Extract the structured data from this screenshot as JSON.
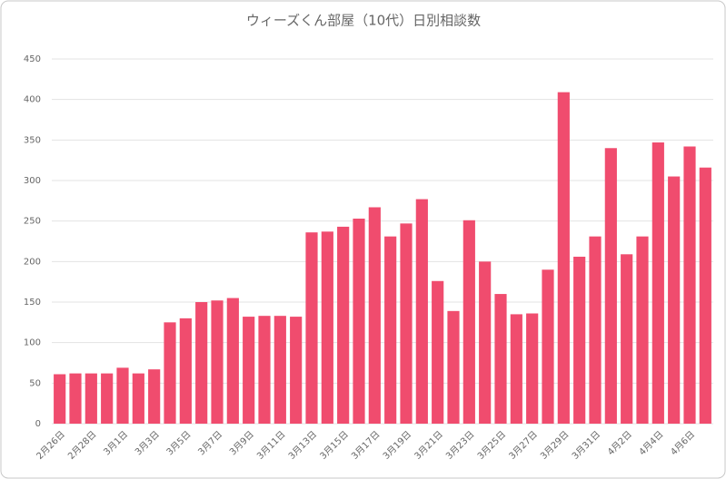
{
  "chart_data": {
    "type": "bar",
    "title": "ウィーズくん部屋（10代）日別相談数",
    "categories": [
      "2月26日",
      null,
      "2月28日",
      null,
      "3月1日",
      null,
      "3月3日",
      null,
      "3月5日",
      null,
      "3月7日",
      null,
      "3月9日",
      null,
      "3月11日",
      null,
      "3月13日",
      null,
      "3月15日",
      null,
      "3月17日",
      null,
      "3月19日",
      null,
      "3月21日",
      null,
      "3月23日",
      null,
      "3月25日",
      null,
      "3月27日",
      null,
      "3月29日",
      null,
      "3月31日",
      null,
      "4月2日",
      null,
      "4月4日",
      null,
      "4月6日",
      null
    ],
    "values": [
      61,
      62,
      62,
      62,
      69,
      62,
      67,
      125,
      130,
      150,
      152,
      155,
      132,
      133,
      133,
      132,
      236,
      237,
      243,
      253,
      267,
      231,
      247,
      277,
      176,
      139,
      251,
      200,
      160,
      135,
      136,
      190,
      409,
      206,
      231,
      340,
      209,
      231,
      347,
      305,
      342,
      316
    ],
    "color": "#f04c6e",
    "ylim": [
      0,
      450
    ],
    "yticks": [
      0,
      50,
      100,
      150,
      200,
      250,
      300,
      350,
      400,
      450
    ],
    "grid": true
  }
}
